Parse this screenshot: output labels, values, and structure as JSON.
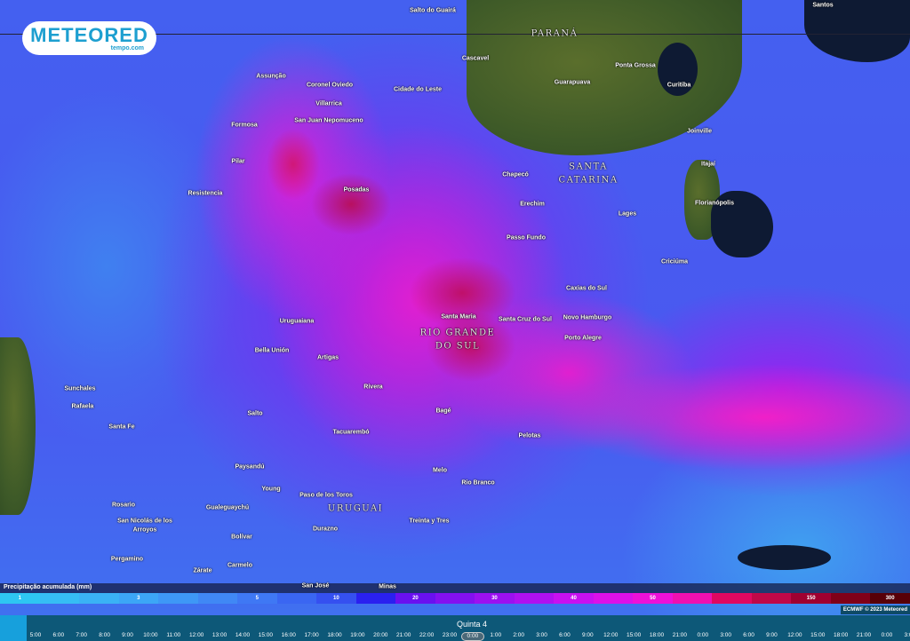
{
  "brand": {
    "name": "METEORED",
    "sub": "tempo.com"
  },
  "places": {
    "salto_guaira": "Salto do Guairá",
    "parana": "PARANÁ",
    "santos": "Santos",
    "cascavel": "Cascavel",
    "ponta_grossa": "Ponta Grossa",
    "assuncao": "Assunção",
    "coronel_oviedo": "Coronel Oviedo",
    "cidade_leste": "Cidade do Leste",
    "guarapuava": "Guarapuava",
    "curitiba": "Curitiba",
    "villarrica": "Villarrica",
    "san_juan": "San Juan Nepomuceno",
    "formosa": "Formosa",
    "joinville": "Joinville",
    "pilar": "Pilar",
    "santa_catarina_1": "SANTA",
    "santa_catarina_2": "CATARINA",
    "chapeco": "Chapecó",
    "itajai": "Itajaí",
    "posadas": "Posadas",
    "resistencia": "Resistencia",
    "erechim": "Erechim",
    "florianopolis": "Florianópolis",
    "lages": "Lages",
    "passo_fundo": "Passo Fundo",
    "criciuma": "Criciúma",
    "caxias": "Caxias do Sul",
    "rgs_1": "RIO GRANDE",
    "rgs_2": "DO SUL",
    "santa_maria": "Santa Maria",
    "santa_cruz": "Santa Cruz do Sul",
    "novo_hamburgo": "Novo Hamburgo",
    "uruguaiana": "Uruguaiana",
    "porto_alegre": "Porto Alegre",
    "bella_union": "Bella Unión",
    "artigas": "Artigas",
    "rivera": "Rivera",
    "sunchales": "Sunchales",
    "rafaela": "Rafaela",
    "bage": "Bagé",
    "salto": "Salto",
    "santa_fe": "Santa Fe",
    "tacuarembo": "Tacuarembó",
    "pelotas": "Pelotas",
    "paysandu": "Paysandú",
    "melo": "Melo",
    "rio_branco": "Rio Branco",
    "young": "Young",
    "paso_toros": "Paso de los Toros",
    "uruguai": "URUGUAI",
    "rosario": "Rosario",
    "gualeguaychu": "Gualeguaychú",
    "treinta_tres": "Treinta y Tres",
    "san_nicolas_1": "San Nicolás de los",
    "san_nicolas_2": "Arroyos",
    "durazno": "Durazno",
    "bolivar": "Bolívar",
    "pergamino": "Pergamino",
    "carmelo": "Carmelo",
    "zarate": "Zárate",
    "san_jose": "San José",
    "minas": "Minas"
  },
  "legend": {
    "title": "Precipitação acumulada (mm)",
    "steps": [
      {
        "label": "1",
        "color": "#2ec6f2"
      },
      {
        "label": "",
        "color": "#36bdf4"
      },
      {
        "label": "",
        "color": "#3ab2f5"
      },
      {
        "label": "3",
        "color": "#3ca6f6"
      },
      {
        "label": "",
        "color": "#3e98f6"
      },
      {
        "label": "",
        "color": "#4088f5"
      },
      {
        "label": "5",
        "color": "#3f78f4"
      },
      {
        "label": "",
        "color": "#3a66f2"
      },
      {
        "label": "10",
        "color": "#3550f0"
      },
      {
        "label": "",
        "color": "#2a20f0"
      },
      {
        "label": "20",
        "color": "#6a10f0"
      },
      {
        "label": "",
        "color": "#8410f0"
      },
      {
        "label": "30",
        "color": "#9c10f0"
      },
      {
        "label": "",
        "color": "#b010f0"
      },
      {
        "label": "40",
        "color": "#c810f0"
      },
      {
        "label": "",
        "color": "#dc10e8"
      },
      {
        "label": "50",
        "color": "#ee10d8"
      },
      {
        "label": "",
        "color": "#f010b0"
      },
      {
        "label": "",
        "color": "#e00860"
      },
      {
        "label": "",
        "color": "#c00848"
      },
      {
        "label": "150",
        "color": "#a00030"
      },
      {
        "label": "",
        "color": "#800018"
      },
      {
        "label": "300",
        "color": "#580008"
      }
    ]
  },
  "credit": "ECMWF © 2023 Meteored",
  "timeline": {
    "day": "Quinta 4",
    "selected": "0:00",
    "ticks": [
      "5:00",
      "6:00",
      "7:00",
      "8:00",
      "9:00",
      "10:00",
      "11:00",
      "12:00",
      "13:00",
      "14:00",
      "15:00",
      "16:00",
      "17:00",
      "18:00",
      "19:00",
      "20:00",
      "21:00",
      "22:00",
      "23:00",
      "0:00",
      "1:00",
      "2:00",
      "3:00",
      "6:00",
      "9:00",
      "12:00",
      "15:00",
      "18:00",
      "21:00",
      "0:00",
      "3:00",
      "6:00",
      "9:00",
      "12:00",
      "15:00",
      "18:00",
      "21:00",
      "0:00",
      "3:00"
    ]
  }
}
